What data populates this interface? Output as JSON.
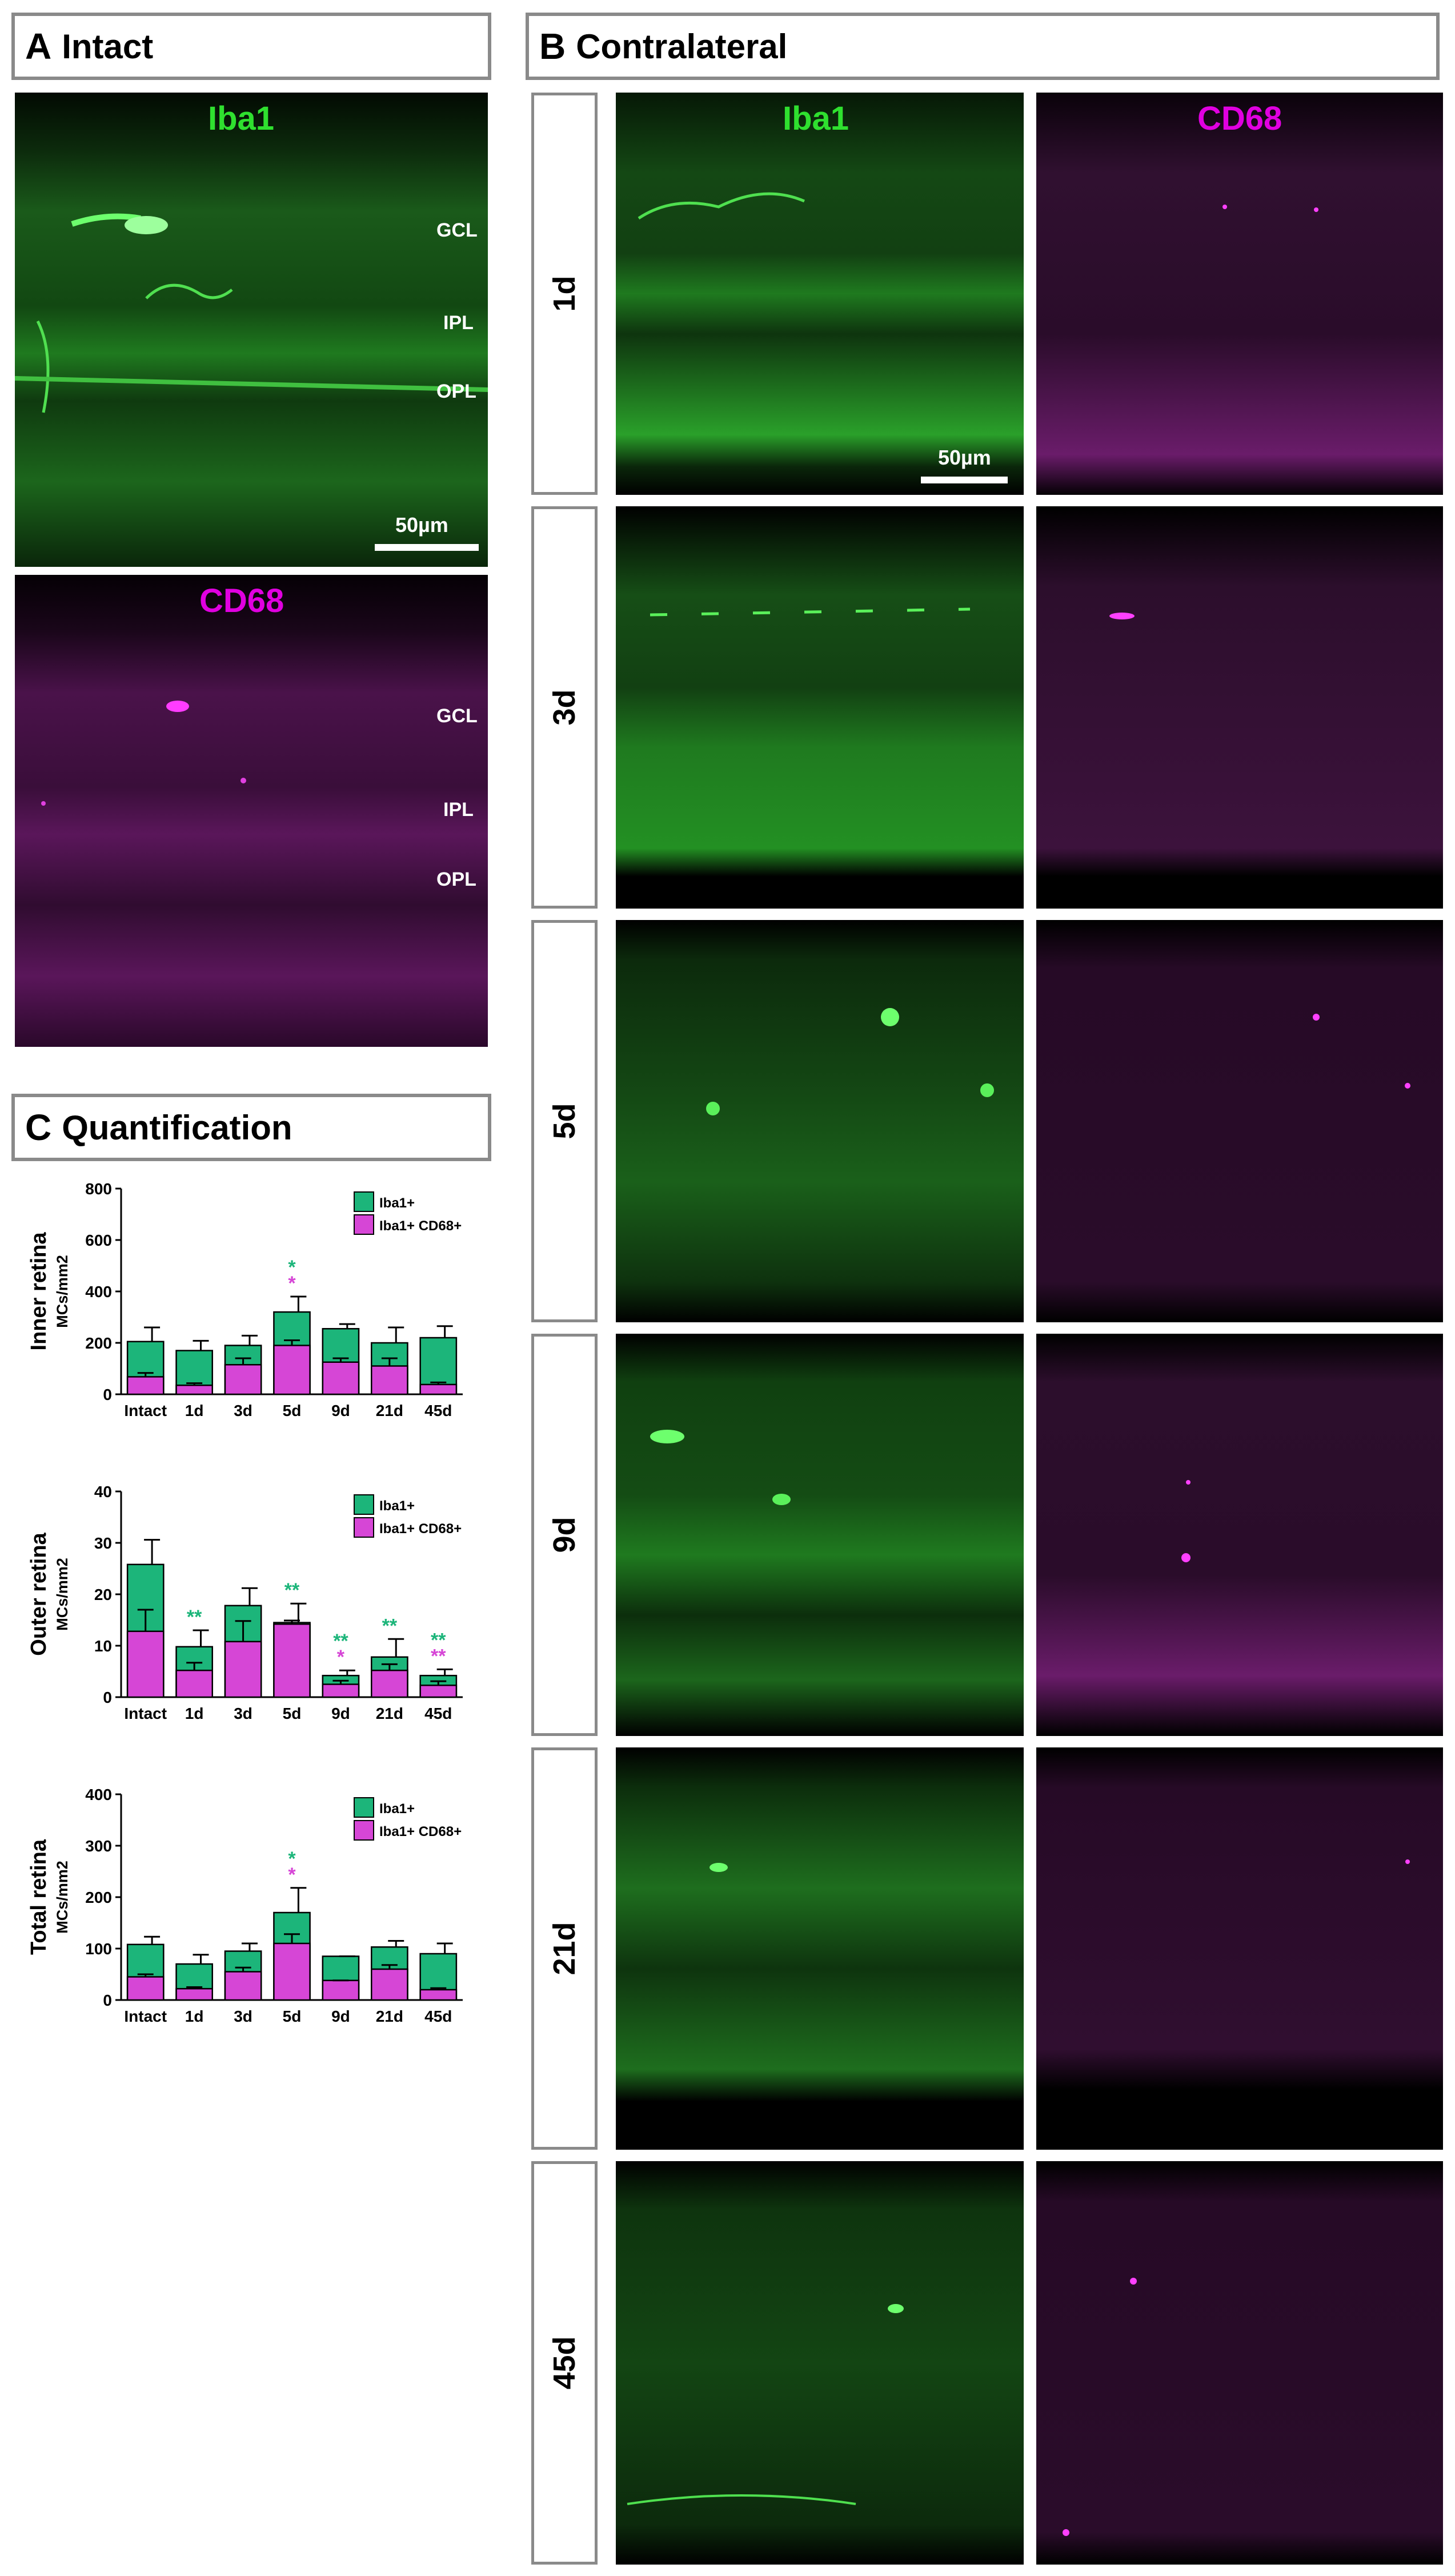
{
  "panelA": {
    "letter": "A",
    "title": "Intact",
    "iba1_label": "Iba1",
    "cd68_label": "CD68",
    "layers": [
      "GCL",
      "IPL",
      "OPL"
    ],
    "scale": "50µm"
  },
  "panelB": {
    "letter": "B",
    "title": "Contralateral",
    "iba1_label": "Iba1",
    "cd68_label": "CD68",
    "scale": "50µm",
    "rows": [
      "1d",
      "3d",
      "5d",
      "9d",
      "21d",
      "45d"
    ]
  },
  "panelC": {
    "letter": "C",
    "title": "Quantification"
  },
  "colors": {
    "iba1": "#21c05e",
    "iba1_bar": "#1cb57a",
    "cd68": "#d646d6",
    "cd68_text": "#e000e0",
    "frame": "#8a8a8a",
    "sig_green": "#1cb57a",
    "sig_magenta": "#d646d6"
  },
  "chart_data": [
    {
      "type": "bar",
      "ylabel": "Inner retina",
      "ylabel_unit": "MCs/mm2",
      "categories": [
        "Intact",
        "1d",
        "3d",
        "5d",
        "9d",
        "21d",
        "45d"
      ],
      "ylim": [
        0,
        800
      ],
      "yticks": [
        "0",
        "200",
        "400",
        "600",
        "800"
      ],
      "legend": [
        "Iba1+",
        "Iba1+ CD68+"
      ],
      "series": [
        {
          "name": "Iba1+",
          "values": [
            205,
            170,
            190,
            320,
            255,
            200,
            220
          ],
          "errors": [
            55,
            38,
            38,
            60,
            18,
            60,
            45
          ]
        },
        {
          "name": "Iba1+ CD68+",
          "values": [
            68,
            35,
            115,
            190,
            125,
            110,
            38
          ],
          "errors": [
            15,
            8,
            25,
            20,
            15,
            30,
            8
          ]
        }
      ],
      "significance": [
        {
          "category": "5d",
          "marks": [
            {
              "text": "*",
              "color": "green"
            },
            {
              "text": "*",
              "color": "magenta"
            }
          ]
        }
      ]
    },
    {
      "type": "bar",
      "ylabel": "Outer retina",
      "ylabel_unit": "MCs/mm2",
      "categories": [
        "Intact",
        "1d",
        "3d",
        "5d",
        "9d",
        "21d",
        "45d"
      ],
      "ylim": [
        0,
        40
      ],
      "yticks": [
        "0",
        "10",
        "20",
        "30",
        "40"
      ],
      "legend": [
        "Iba1+",
        "Iba1+ CD68+"
      ],
      "series": [
        {
          "name": "Iba1+",
          "values": [
            25.8,
            9.8,
            17.8,
            14.5,
            4.2,
            7.8,
            4.2
          ],
          "errors": [
            4.8,
            3.2,
            3.4,
            3.7,
            1.0,
            3.5,
            1.2
          ]
        },
        {
          "name": "Iba1+ CD68+",
          "values": [
            12.8,
            5.2,
            10.8,
            14.2,
            2.5,
            5.2,
            2.3
          ],
          "errors": [
            4.2,
            1.5,
            4.0,
            0.7,
            0.7,
            1.2,
            0.8
          ]
        }
      ],
      "significance": [
        {
          "category": "1d",
          "marks": [
            {
              "text": "**",
              "color": "green"
            }
          ]
        },
        {
          "category": "5d",
          "marks": [
            {
              "text": "**",
              "color": "green"
            }
          ]
        },
        {
          "category": "9d",
          "marks": [
            {
              "text": "**",
              "color": "green"
            },
            {
              "text": "*",
              "color": "magenta"
            }
          ]
        },
        {
          "category": "21d",
          "marks": [
            {
              "text": "**",
              "color": "green"
            }
          ]
        },
        {
          "category": "45d",
          "marks": [
            {
              "text": "**",
              "color": "green"
            },
            {
              "text": "**",
              "color": "magenta"
            }
          ]
        }
      ]
    },
    {
      "type": "bar",
      "ylabel": "Total retina",
      "ylabel_unit": "MCs/mm2",
      "categories": [
        "Intact",
        "1d",
        "3d",
        "5d",
        "9d",
        "21d",
        "45d"
      ],
      "ylim": [
        0,
        400
      ],
      "yticks": [
        "0",
        "100",
        "200",
        "300",
        "400"
      ],
      "legend": [
        "Iba1+",
        "Iba1+ CD68+"
      ],
      "series": [
        {
          "name": "Iba1+",
          "values": [
            108,
            70,
            95,
            170,
            85,
            103,
            90
          ],
          "errors": [
            15,
            18,
            15,
            48,
            0,
            12,
            20
          ]
        },
        {
          "name": "Iba1+ CD68+",
          "values": [
            45,
            22,
            55,
            110,
            38,
            60,
            20
          ],
          "errors": [
            5,
            3,
            8,
            18,
            0,
            8,
            3
          ]
        }
      ],
      "significance": [
        {
          "category": "5d",
          "marks": [
            {
              "text": "*",
              "color": "green"
            },
            {
              "text": "*",
              "color": "magenta"
            }
          ]
        }
      ]
    }
  ]
}
